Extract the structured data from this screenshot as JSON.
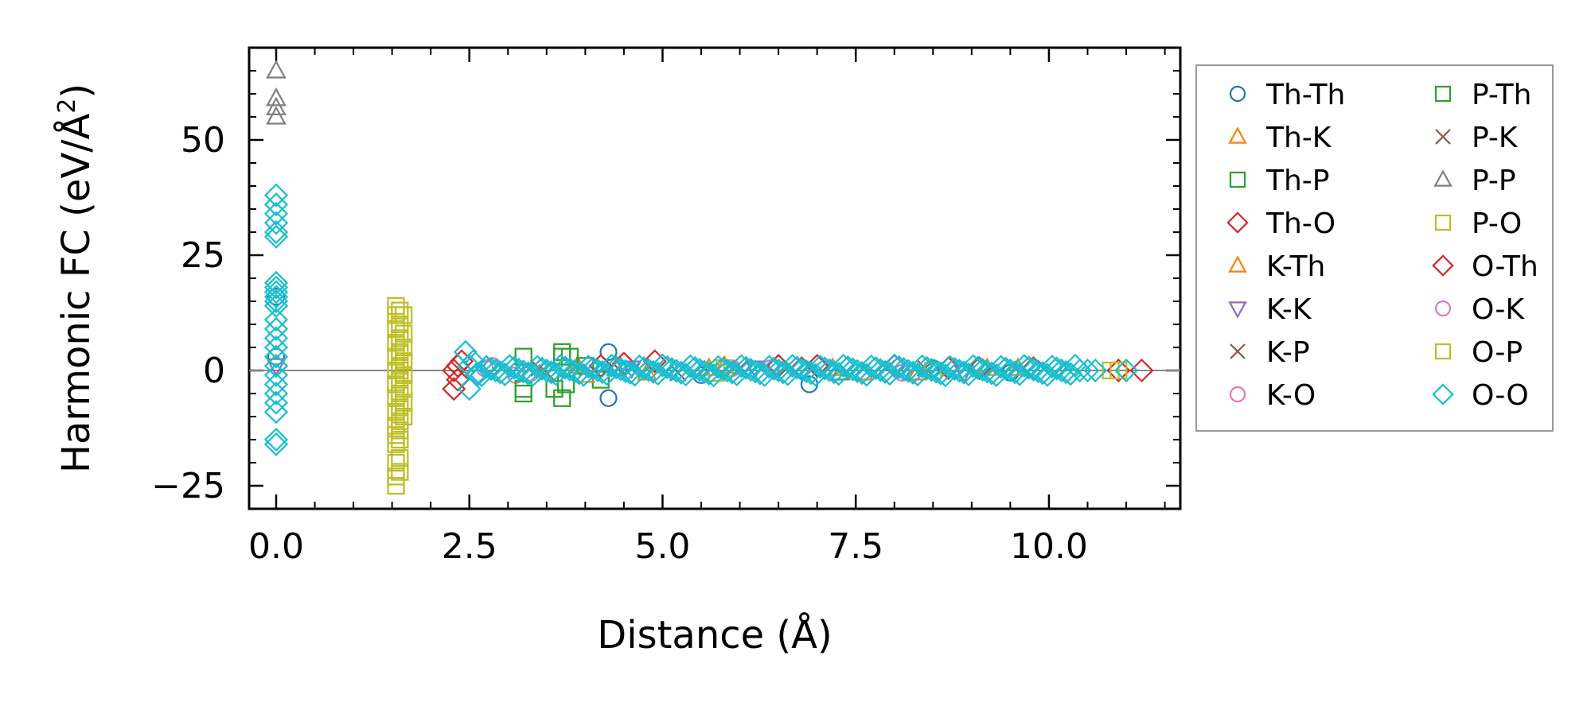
{
  "chart_data": {
    "type": "scatter",
    "xlabel": "Distance (Å)",
    "ylabel_main": "Harmonic FC (eV/Å",
    "ylabel_sup": "2",
    "ylabel_close": ")",
    "xlim": [
      -0.35,
      11.7
    ],
    "ylim": [
      -30,
      70
    ],
    "x_ticks": [
      0.0,
      2.5,
      5.0,
      7.5,
      10.0
    ],
    "x_tick_labels": [
      "0.0",
      "2.5",
      "5.0",
      "7.5",
      "10.0"
    ],
    "y_ticks": [
      -25,
      0,
      25,
      50
    ],
    "y_tick_labels": [
      "−25",
      "0",
      "25",
      "50"
    ],
    "zero_line": 0,
    "legend_position": "outside-right",
    "legend_columns": 2,
    "series": [
      {
        "name": "Th-Th",
        "marker": "circle",
        "color": "#1f77b4",
        "points": [
          [
            0.0,
            16
          ],
          [
            0.0,
            3
          ],
          [
            4.3,
            4
          ],
          [
            4.3,
            -6
          ],
          [
            5.5,
            -1
          ],
          [
            6.9,
            -3
          ],
          [
            8.5,
            0.5
          ],
          [
            9.5,
            -0.5
          ]
        ]
      },
      {
        "name": "Th-K",
        "marker": "triangle-up",
        "color": "#ff7f0e",
        "points": [
          [
            3.9,
            1
          ],
          [
            4.8,
            -0.5
          ],
          [
            5.8,
            1
          ],
          [
            7.2,
            0.5
          ],
          [
            8.3,
            -0.5
          ],
          [
            9.6,
            0.5
          ]
        ]
      },
      {
        "name": "Th-P",
        "marker": "square",
        "color": "#2ca02c",
        "points": [
          [
            3.2,
            3
          ],
          [
            3.2,
            -5
          ],
          [
            3.7,
            4
          ],
          [
            3.7,
            -6
          ],
          [
            3.8,
            3
          ],
          [
            3.6,
            -4
          ],
          [
            4.2,
            -2
          ]
        ]
      },
      {
        "name": "Th-O",
        "marker": "diamond",
        "color": "#d62728",
        "points": [
          [
            2.3,
            0
          ],
          [
            2.3,
            -4
          ],
          [
            2.4,
            2
          ],
          [
            4.5,
            1.5
          ],
          [
            4.9,
            2
          ],
          [
            6.5,
            1
          ],
          [
            7.0,
            1
          ],
          [
            8.0,
            1
          ],
          [
            8.7,
            0.5
          ],
          [
            9.8,
            0.5
          ],
          [
            10.9,
            0
          ],
          [
            11.2,
            0
          ]
        ]
      },
      {
        "name": "K-Th",
        "marker": "triangle-up",
        "color": "#ff7f0e",
        "points": [
          [
            4.0,
            -1
          ],
          [
            5.6,
            0.5
          ],
          [
            7.6,
            -0.5
          ],
          [
            9.2,
            0.5
          ]
        ]
      },
      {
        "name": "K-K",
        "marker": "triangle-down",
        "color": "#9467bd",
        "points": [
          [
            0.0,
            1
          ],
          [
            4.6,
            0.5
          ],
          [
            6.2,
            0.5
          ],
          [
            8.9,
            -0.5
          ]
        ]
      },
      {
        "name": "K-P",
        "marker": "x",
        "color": "#8c564b",
        "points": [
          [
            3.4,
            0.5
          ],
          [
            5.2,
            -0.5
          ],
          [
            7.9,
            0.5
          ]
        ]
      },
      {
        "name": "K-O",
        "marker": "circle",
        "color": "#e377c2",
        "points": [
          [
            2.8,
            1
          ],
          [
            3.1,
            -1
          ],
          [
            5.9,
            0.5
          ],
          [
            8.1,
            -0.5
          ]
        ]
      },
      {
        "name": "P-Th",
        "marker": "square",
        "color": "#2ca02c",
        "points": [
          [
            3.2,
            -4
          ],
          [
            3.7,
            3
          ],
          [
            3.75,
            -3
          ],
          [
            4.0,
            1
          ]
        ]
      },
      {
        "name": "P-K",
        "marker": "x",
        "color": "#8c564b",
        "points": [
          [
            3.5,
            -0.5
          ],
          [
            6.0,
            0.5
          ],
          [
            8.4,
            0.5
          ]
        ]
      },
      {
        "name": "P-P",
        "marker": "triangle-up",
        "color": "#7f7f7f",
        "points": [
          [
            0.0,
            65
          ],
          [
            0.0,
            59
          ],
          [
            0.0,
            57
          ],
          [
            0.0,
            55
          ],
          [
            4.4,
            0.5
          ],
          [
            7.3,
            -0.5
          ]
        ]
      },
      {
        "name": "P-O",
        "marker": "square",
        "color": "#bcbd22",
        "points": [
          [
            1.55,
            14
          ],
          [
            1.55,
            12
          ],
          [
            1.55,
            9
          ],
          [
            1.55,
            6
          ],
          [
            1.55,
            3
          ],
          [
            1.55,
            0
          ],
          [
            1.55,
            -3
          ],
          [
            1.55,
            -6
          ],
          [
            1.55,
            -9
          ],
          [
            1.55,
            -12
          ],
          [
            1.55,
            -14
          ],
          [
            1.55,
            -16
          ],
          [
            1.55,
            -20
          ],
          [
            1.55,
            -23
          ],
          [
            1.55,
            -25
          ],
          [
            1.6,
            13
          ],
          [
            1.6,
            10
          ],
          [
            1.6,
            7
          ],
          [
            1.6,
            4
          ],
          [
            1.6,
            1
          ],
          [
            1.6,
            -2
          ],
          [
            1.6,
            -5
          ],
          [
            1.6,
            -8
          ],
          [
            1.6,
            -11
          ],
          [
            1.6,
            -13
          ],
          [
            1.6,
            -15
          ],
          [
            1.6,
            -19
          ],
          [
            1.6,
            -22
          ],
          [
            1.65,
            12
          ],
          [
            1.65,
            8
          ],
          [
            1.65,
            5
          ],
          [
            1.65,
            2
          ],
          [
            1.65,
            -1
          ],
          [
            1.65,
            -4
          ],
          [
            1.65,
            -7
          ],
          [
            1.65,
            -10
          ],
          [
            5.8,
            0.5
          ],
          [
            8.5,
            0
          ],
          [
            10.8,
            0
          ]
        ]
      },
      {
        "name": "O-Th",
        "marker": "diamond",
        "color": "#d62728",
        "points": [
          [
            2.35,
            1
          ],
          [
            2.35,
            -2
          ],
          [
            4.2,
            1
          ],
          [
            6.8,
            0.5
          ],
          [
            9.1,
            0.5
          ]
        ]
      },
      {
        "name": "O-K",
        "marker": "circle",
        "color": "#e377c2",
        "points": [
          [
            2.7,
            0.5
          ],
          [
            3.3,
            -0.5
          ],
          [
            6.4,
            0.5
          ]
        ]
      },
      {
        "name": "O-P",
        "marker": "square",
        "color": "#bcbd22",
        "points": [
          [
            1.6,
            0
          ],
          [
            5.7,
            -0.5
          ],
          [
            10.9,
            0
          ]
        ]
      },
      {
        "name": "O-O",
        "marker": "diamond",
        "color": "#17becf",
        "points": [
          [
            0.0,
            38
          ],
          [
            0.0,
            36
          ],
          [
            0.0,
            34
          ],
          [
            0.0,
            32
          ],
          [
            0.0,
            30
          ],
          [
            0.0,
            29
          ],
          [
            0.0,
            19
          ],
          [
            0.0,
            18
          ],
          [
            0.0,
            17
          ],
          [
            0.0,
            16
          ],
          [
            0.0,
            15
          ],
          [
            0.0,
            14
          ],
          [
            0.0,
            11
          ],
          [
            0.0,
            9
          ],
          [
            0.0,
            7
          ],
          [
            0.0,
            5
          ],
          [
            0.0,
            3
          ],
          [
            0.0,
            1
          ],
          [
            0.0,
            -1
          ],
          [
            0.0,
            -3
          ],
          [
            0.0,
            -5
          ],
          [
            0.0,
            -7
          ],
          [
            0.0,
            -9
          ],
          [
            0.0,
            -15
          ],
          [
            0.0,
            -16
          ],
          [
            2.45,
            4
          ],
          [
            2.5,
            -4
          ],
          [
            2.5,
            1
          ],
          [
            2.6,
            -1
          ],
          [
            2.55,
            2
          ],
          [
            11.0,
            0
          ],
          [
            10.4,
            0
          ],
          [
            10.5,
            0
          ],
          [
            10.6,
            0
          ]
        ]
      }
    ]
  }
}
